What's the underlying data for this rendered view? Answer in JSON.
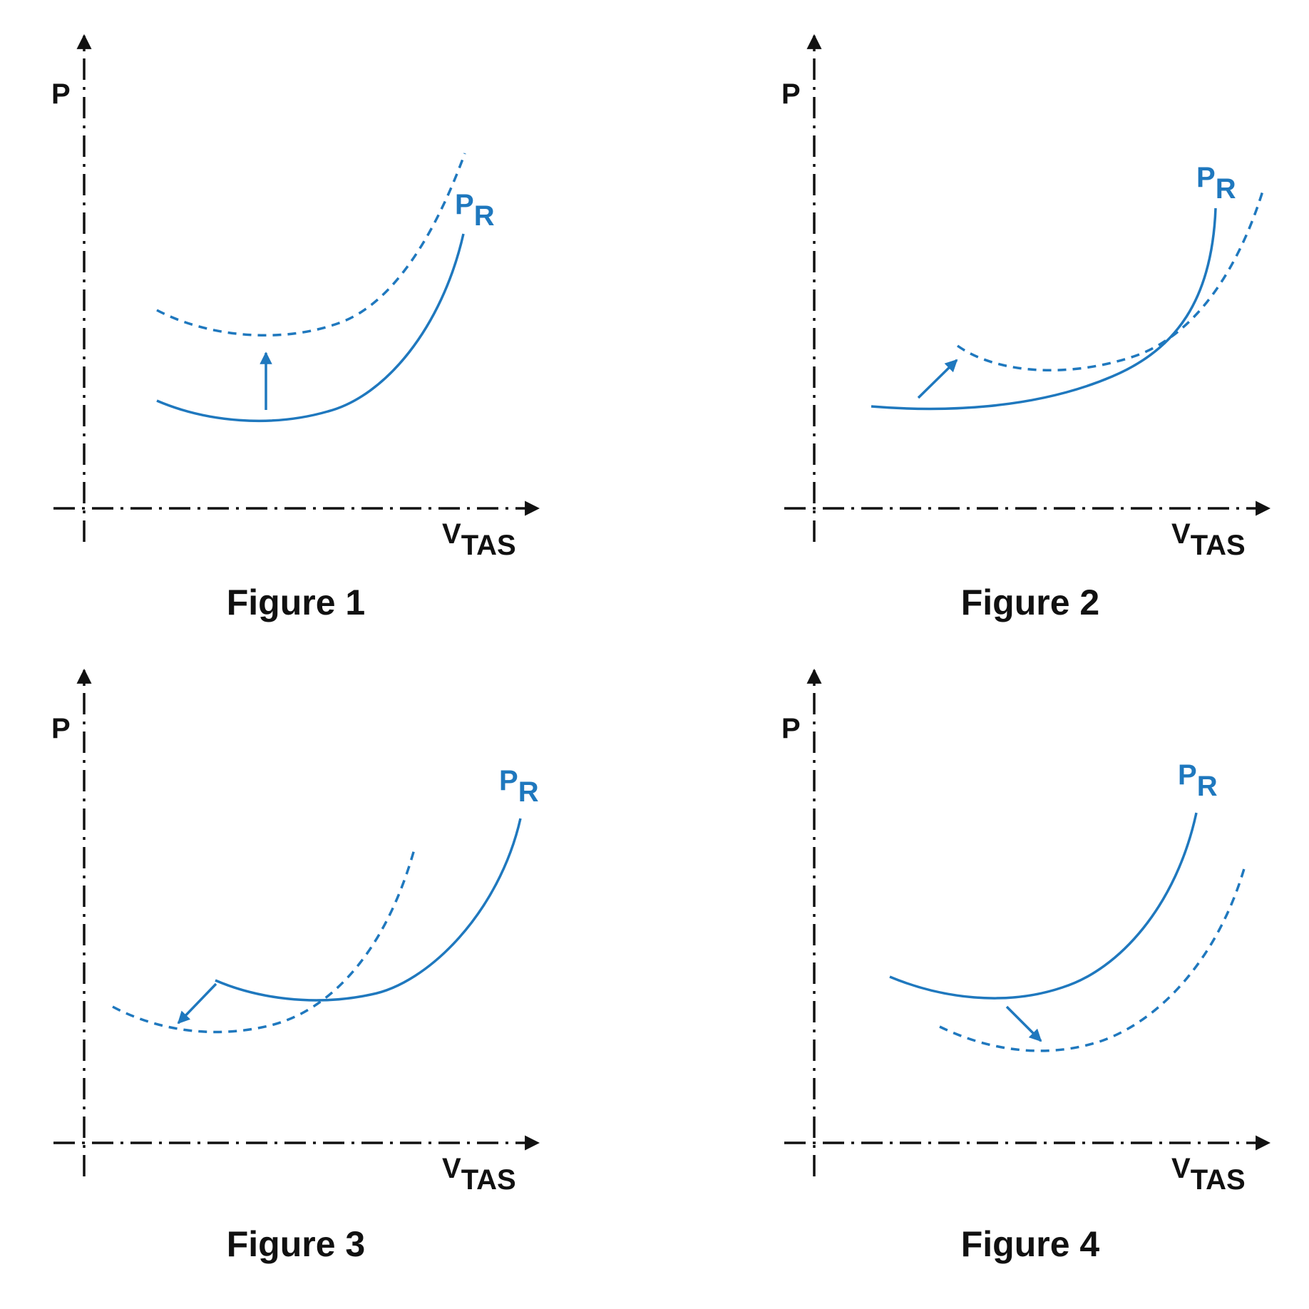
{
  "colors": {
    "curve": "#1f78be",
    "axis": "#111111"
  },
  "figures": [
    {
      "caption": "Figure 1",
      "y_axis_label": "P",
      "x_axis_label": "V",
      "x_axis_sub": "TAS",
      "curve_label": "P",
      "curve_sub": "R"
    },
    {
      "caption": "Figure 2",
      "y_axis_label": "P",
      "x_axis_label": "V",
      "x_axis_sub": "TAS",
      "curve_label": "P",
      "curve_sub": "R"
    },
    {
      "caption": "Figure 3",
      "y_axis_label": "P",
      "x_axis_label": "V",
      "x_axis_sub": "TAS",
      "curve_label": "P",
      "curve_sub": "R"
    },
    {
      "caption": "Figure 4",
      "y_axis_label": "P",
      "x_axis_label": "V",
      "x_axis_sub": "TAS",
      "curve_label": "P",
      "curve_sub": "R"
    }
  ]
}
